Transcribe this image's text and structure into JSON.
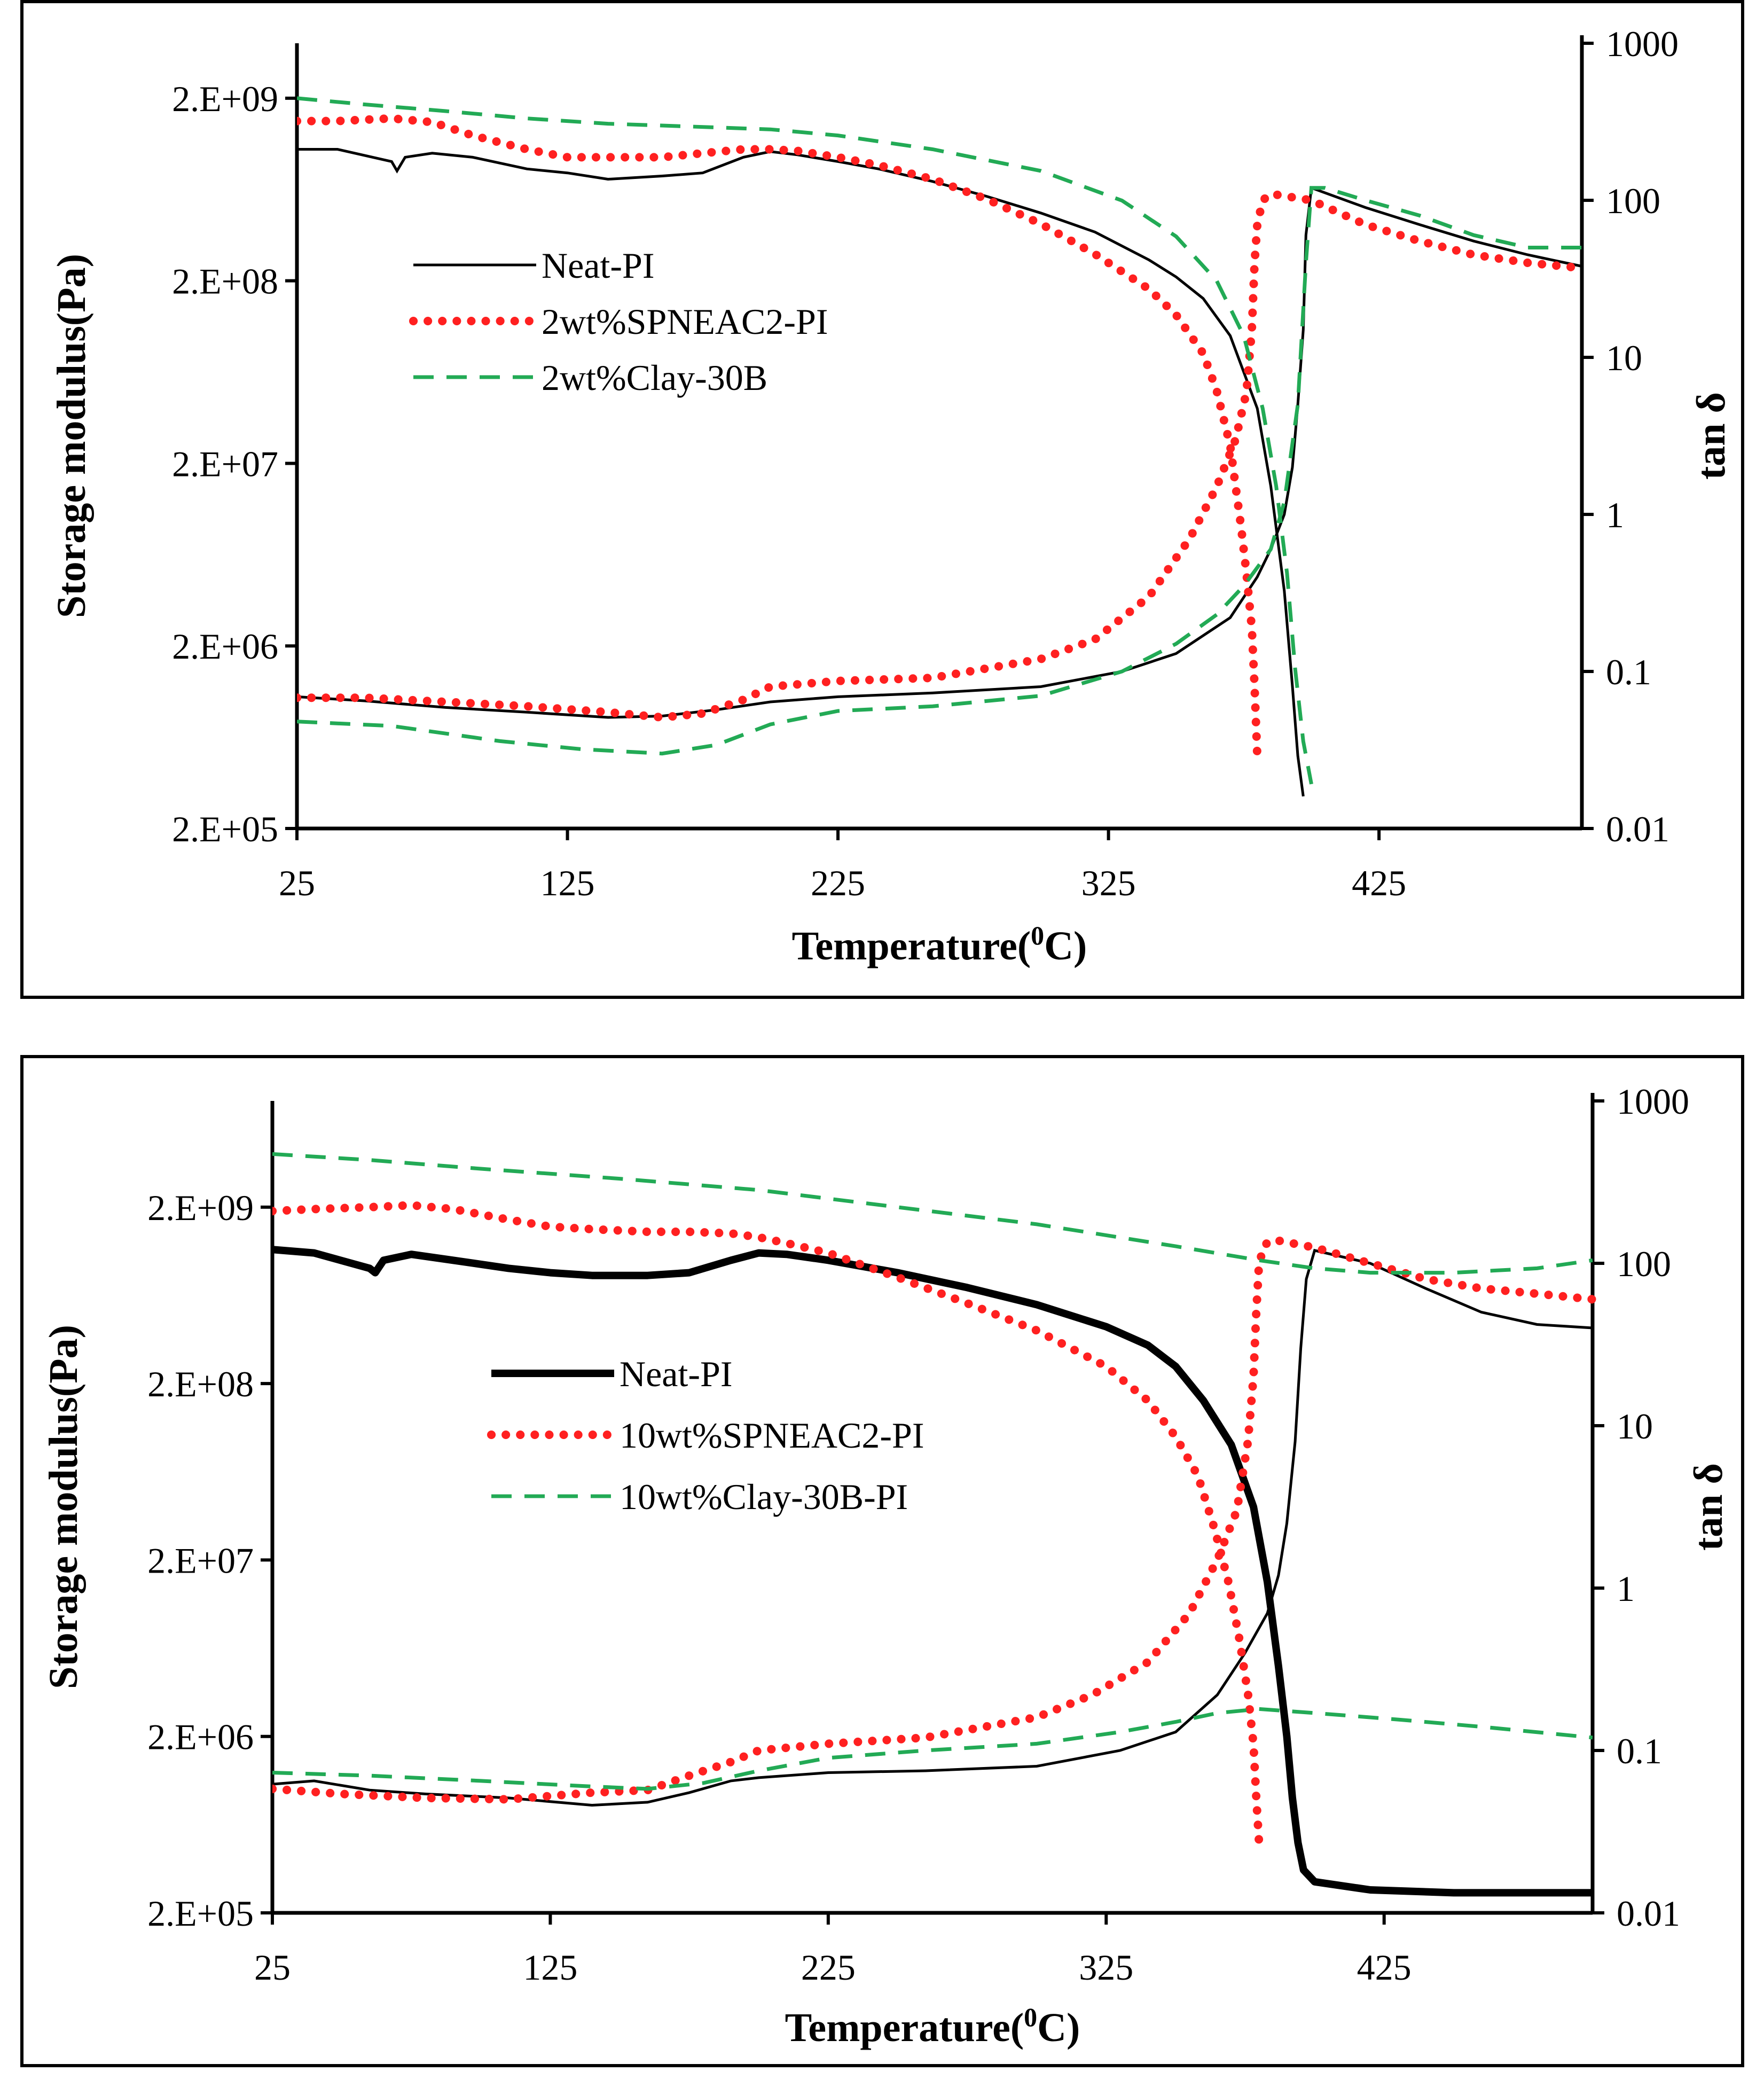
{
  "colors": {
    "neat": "#000000",
    "spneac": "#ff2020",
    "clay": "#22aa55"
  },
  "chart_data": [
    {
      "type": "line",
      "title": "",
      "xlabel": "Temperature(0C)",
      "xlabel_main": "Temperature(",
      "xlabel_sup": "0",
      "xlabel_end": "C)",
      "ylabel": "Storage modulus(Pa)",
      "y2label": "tan δ",
      "xlim": [
        25,
        500
      ],
      "ylim": [
        200000,
        4000000000
      ],
      "y2lim": [
        0.01,
        1000
      ],
      "xticks": [
        "25",
        "125",
        "225",
        "325",
        "425"
      ],
      "yticks": [
        "2.E+05",
        "2.E+06",
        "2.E+07",
        "2.E+08",
        "2.E+09"
      ],
      "y2ticks": [
        "0.01",
        "0.1",
        "1",
        "10",
        "100",
        "1000"
      ],
      "legend": [
        "Neat-PI",
        "2wt%SPNEAC2-PI",
        "2wt%Clay-30B"
      ],
      "series": [
        {
          "name": "Neat-PI (storage modulus)",
          "style": "neat",
          "axis": "left",
          "x": [
            25,
            40,
            60,
            62,
            65,
            75,
            90,
            110,
            125,
            140,
            160,
            175,
            190,
            200,
            210,
            225,
            240,
            260,
            280,
            300,
            320,
            340,
            350,
            360,
            370,
            380,
            385,
            390,
            393,
            395,
            397
          ],
          "y": [
            1050000000,
            1050000000,
            900000000,
            800000000,
            950000000,
            1000000000,
            950000000,
            820000000,
            780000000,
            720000000,
            750000000,
            780000000,
            950000000,
            1020000000,
            980000000,
            900000000,
            820000000,
            700000000,
            580000000,
            470000000,
            370000000,
            260000000,
            210000000,
            160000000,
            100000000,
            40000000,
            15000000,
            4000000,
            1200000,
            500000,
            300000
          ]
        },
        {
          "name": "Neat-PI (tan δ)",
          "style": "neat",
          "axis": "right",
          "x": [
            25,
            50,
            80,
            110,
            140,
            160,
            180,
            200,
            225,
            260,
            300,
            330,
            350,
            370,
            380,
            385,
            390,
            393,
            395,
            397,
            398,
            400,
            420,
            440,
            460,
            480,
            500
          ],
          "y": [
            0.069,
            0.065,
            0.059,
            0.055,
            0.051,
            0.052,
            0.057,
            0.064,
            0.069,
            0.073,
            0.08,
            0.1,
            0.13,
            0.22,
            0.4,
            0.6,
            1.0,
            2.0,
            5.0,
            15,
            60,
            120,
            90,
            70,
            55,
            45,
            38
          ]
        },
        {
          "name": "2wt%SPNEAC2-PI (storage modulus)",
          "style": "spneac",
          "axis": "left",
          "x": [
            25,
            40,
            60,
            75,
            90,
            110,
            125,
            140,
            160,
            175,
            190,
            200,
            210,
            225,
            240,
            260,
            280,
            300,
            320,
            340,
            350,
            360,
            365,
            370,
            372,
            374,
            376,
            378,
            379,
            380
          ],
          "y": [
            1500000000,
            1500000000,
            1550000000,
            1480000000,
            1250000000,
            1050000000,
            950000000,
            950000000,
            950000000,
            1000000000,
            1050000000,
            1050000000,
            1030000000,
            950000000,
            860000000,
            720000000,
            560000000,
            410000000,
            280000000,
            180000000,
            130000000,
            80000000,
            50000000,
            25000000,
            15000000,
            9000000,
            5000000,
            2500000,
            1200000,
            500000
          ]
        },
        {
          "name": "2wt%SPNEAC2-PI (tan δ)",
          "style": "spneac",
          "axis": "right",
          "x": [
            25,
            50,
            80,
            110,
            140,
            160,
            175,
            190,
            200,
            225,
            260,
            300,
            320,
            340,
            355,
            365,
            372,
            376,
            378,
            379,
            380,
            382,
            385,
            400,
            420,
            440,
            460,
            480,
            500
          ],
          "y": [
            0.068,
            0.068,
            0.064,
            0.06,
            0.055,
            0.051,
            0.054,
            0.066,
            0.08,
            0.087,
            0.091,
            0.12,
            0.16,
            0.3,
            0.7,
            1.5,
            3.0,
            6.0,
            15,
            40,
            70,
            100,
            110,
            100,
            70,
            55,
            45,
            40,
            37
          ]
        },
        {
          "name": "2wt%Clay-30B (storage modulus)",
          "style": "clay",
          "axis": "left",
          "x": [
            25,
            50,
            80,
            110,
            140,
            170,
            200,
            225,
            260,
            300,
            330,
            350,
            365,
            375,
            382,
            387,
            391,
            394,
            397,
            400
          ],
          "y": [
            2000000000,
            1850000000,
            1700000000,
            1550000000,
            1450000000,
            1400000000,
            1350000000,
            1250000000,
            1050000000,
            800000000,
            550000000,
            350000000,
            200000000,
            100000000,
            40000000,
            15000000,
            5000000,
            1500000,
            600000,
            350000
          ]
        },
        {
          "name": "2wt%Clay-30B (tan δ)",
          "style": "clay",
          "axis": "right",
          "x": [
            25,
            60,
            100,
            130,
            160,
            180,
            200,
            225,
            260,
            300,
            330,
            350,
            365,
            375,
            385,
            390,
            395,
            398,
            400,
            405,
            420,
            440,
            460,
            480,
            500
          ],
          "y": [
            0.048,
            0.045,
            0.036,
            0.032,
            0.03,
            0.034,
            0.046,
            0.056,
            0.06,
            0.07,
            0.1,
            0.15,
            0.23,
            0.35,
            0.6,
            1.2,
            5.0,
            40,
            120,
            120,
            100,
            80,
            60,
            50,
            50
          ]
        }
      ]
    },
    {
      "type": "line",
      "title": "",
      "xlabel": "Temperature(0C)",
      "xlabel_main": "Temperature(",
      "xlabel_sup": "0",
      "xlabel_end": "C)",
      "ylabel": "Storage modulus(Pa)",
      "y2label": "tan δ",
      "xlim": [
        25,
        500
      ],
      "ylim": [
        200000,
        8000000000
      ],
      "y2lim": [
        0.01,
        1000
      ],
      "xticks": [
        "25",
        "125",
        "225",
        "325",
        "425"
      ],
      "yticks": [
        "2.E+05",
        "2.E+06",
        "2.E+07",
        "2.E+08",
        "2.E+09"
      ],
      "y2ticks": [
        "0.01",
        "0.1",
        "1",
        "10",
        "100",
        "1000"
      ],
      "legend": [
        "Neat-PI",
        "10wt%SPNEAC2-PI",
        "10wt%Clay-30B-PI"
      ],
      "series": [
        {
          "name": "Neat-PI (storage modulus)",
          "style": "neat_thick",
          "axis": "left",
          "x": [
            25,
            40,
            60,
            62,
            65,
            75,
            90,
            110,
            125,
            140,
            160,
            175,
            190,
            200,
            210,
            225,
            250,
            275,
            300,
            325,
            340,
            350,
            360,
            370,
            378,
            383,
            387,
            390,
            392,
            394,
            396,
            400,
            420,
            450,
            500
          ],
          "y": [
            1150000000,
            1100000000,
            900000000,
            850000000,
            1000000000,
            1080000000,
            1000000000,
            900000000,
            850000000,
            820000000,
            820000000,
            850000000,
            1000000000,
            1100000000,
            1080000000,
            1000000000,
            850000000,
            700000000,
            560000000,
            420000000,
            330000000,
            250000000,
            160000000,
            90000000,
            40000000,
            15000000,
            5000000,
            2000000,
            900000,
            500000,
            350000,
            300000,
            270000,
            260000,
            260000
          ]
        },
        {
          "name": "Neat-PI (tan δ)",
          "style": "neat",
          "axis": "right",
          "x": [
            25,
            40,
            60,
            80,
            110,
            140,
            160,
            175,
            190,
            200,
            225,
            260,
            300,
            330,
            350,
            365,
            375,
            383,
            387,
            390,
            393,
            395,
            397,
            400,
            420,
            440,
            460,
            480,
            500
          ],
          "y": [
            0.062,
            0.065,
            0.057,
            0.054,
            0.051,
            0.046,
            0.048,
            0.055,
            0.065,
            0.068,
            0.073,
            0.075,
            0.08,
            0.1,
            0.13,
            0.22,
            0.4,
            0.7,
            1.2,
            2.5,
            8.0,
            30,
            80,
            120,
            100,
            70,
            50,
            42,
            40
          ]
        },
        {
          "name": "10wt%SPNEAC2-PI (storage modulus)",
          "style": "spneac",
          "axis": "left",
          "x": [
            25,
            40,
            60,
            75,
            90,
            110,
            125,
            140,
            160,
            175,
            190,
            200,
            210,
            225,
            250,
            275,
            300,
            325,
            340,
            350,
            358,
            364,
            369,
            373,
            376,
            378,
            379,
            380
          ],
          "y": [
            1900000000,
            1950000000,
            2000000000,
            2050000000,
            1950000000,
            1700000000,
            1550000000,
            1500000000,
            1450000000,
            1450000000,
            1420000000,
            1350000000,
            1250000000,
            1100000000,
            800000000,
            570000000,
            400000000,
            250000000,
            160000000,
            100000000,
            60000000,
            30000000,
            15000000,
            7000000,
            3500000,
            1800000,
            900000,
            500000
          ]
        },
        {
          "name": "10wt%SPNEAC2-PI (tan δ)",
          "style": "spneac",
          "axis": "right",
          "x": [
            25,
            50,
            80,
            110,
            140,
            160,
            175,
            190,
            200,
            225,
            260,
            300,
            320,
            340,
            355,
            365,
            372,
            376,
            378,
            379,
            380,
            382,
            385,
            400,
            420,
            440,
            460,
            480,
            500
          ],
          "y": [
            0.058,
            0.054,
            0.051,
            0.05,
            0.055,
            0.057,
            0.07,
            0.085,
            0.1,
            0.11,
            0.12,
            0.16,
            0.22,
            0.35,
            0.7,
            1.5,
            3.0,
            8.0,
            20,
            50,
            100,
            130,
            140,
            125,
            100,
            80,
            70,
            65,
            60
          ]
        },
        {
          "name": "10wt%Clay-30B-PI (storage modulus)",
          "style": "clay",
          "axis": "left",
          "x": [
            25,
            60,
            100,
            150,
            200,
            250,
            300,
            350,
            380,
            400,
            420,
            450,
            480,
            500
          ],
          "y": [
            4000000000,
            3700000000,
            3300000000,
            2900000000,
            2500000000,
            2000000000,
            1600000000,
            1200000000,
            1000000000,
            900000000,
            850000000,
            850000000,
            900000000,
            1000000000
          ]
        },
        {
          "name": "10wt%Clay-30B-PI (tan δ)",
          "style": "clay",
          "axis": "right",
          "x": [
            25,
            60,
            100,
            140,
            160,
            180,
            200,
            225,
            260,
            300,
            330,
            350,
            365,
            380,
            400,
            430,
            460,
            500
          ],
          "y": [
            0.073,
            0.07,
            0.065,
            0.06,
            0.058,
            0.063,
            0.075,
            0.09,
            0.1,
            0.11,
            0.13,
            0.15,
            0.17,
            0.18,
            0.17,
            0.155,
            0.14,
            0.12
          ]
        }
      ]
    }
  ]
}
